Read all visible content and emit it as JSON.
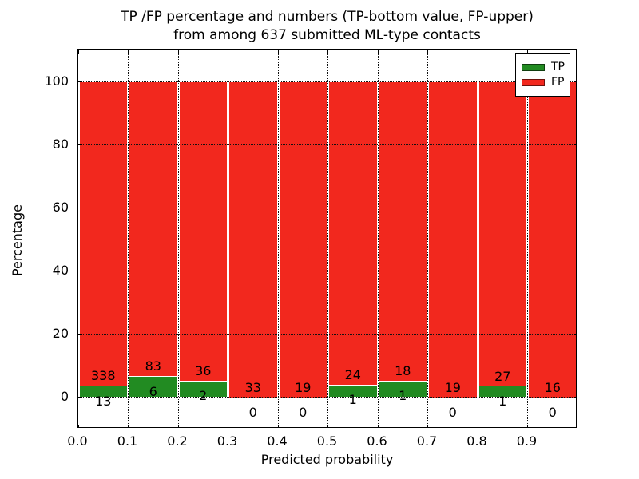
{
  "title": {
    "line1": "TP /FP percentage and numbers (TP-bottom value, FP-upper)",
    "line2": "from among 637 submitted ML-type contacts"
  },
  "chart_data": {
    "type": "bar",
    "stacked": true,
    "title": "TP /FP percentage and numbers (TP-bottom value, FP-upper) from among 637 submitted ML-type contacts",
    "xlabel": "Predicted probability",
    "ylabel": "Percentage",
    "total_contacts": 637,
    "bin_width": 0.1,
    "bin_starts": [
      0.0,
      0.1,
      0.2,
      0.3,
      0.4,
      0.5,
      0.6,
      0.7,
      0.8,
      0.9
    ],
    "series": [
      {
        "name": "TP",
        "color": "#228b22",
        "counts": [
          13,
          6,
          2,
          0,
          0,
          1,
          1,
          0,
          1,
          0
        ]
      },
      {
        "name": "FP",
        "color": "#f2281e",
        "counts": [
          338,
          83,
          36,
          33,
          19,
          24,
          18,
          19,
          27,
          16
        ]
      }
    ],
    "values_are": "counts; bars drawn as percent of bin total (TP% bottom, FP% top, stack = 100%)",
    "xlim": [
      0.0,
      1.0
    ],
    "ylim": [
      -10,
      110
    ],
    "xtick_labels": [
      "0.0",
      "0.1",
      "0.2",
      "0.3",
      "0.4",
      "0.5",
      "0.6",
      "0.7",
      "0.8",
      "0.9"
    ],
    "ytick_labels": [
      "0",
      "20",
      "40",
      "60",
      "80",
      "100"
    ],
    "ytick_values": [
      0,
      20,
      40,
      60,
      80,
      100
    ],
    "grid": "dotted, drawn over bars",
    "legend": {
      "position": "upper right",
      "entries": [
        "TP",
        "FP"
      ]
    }
  }
}
